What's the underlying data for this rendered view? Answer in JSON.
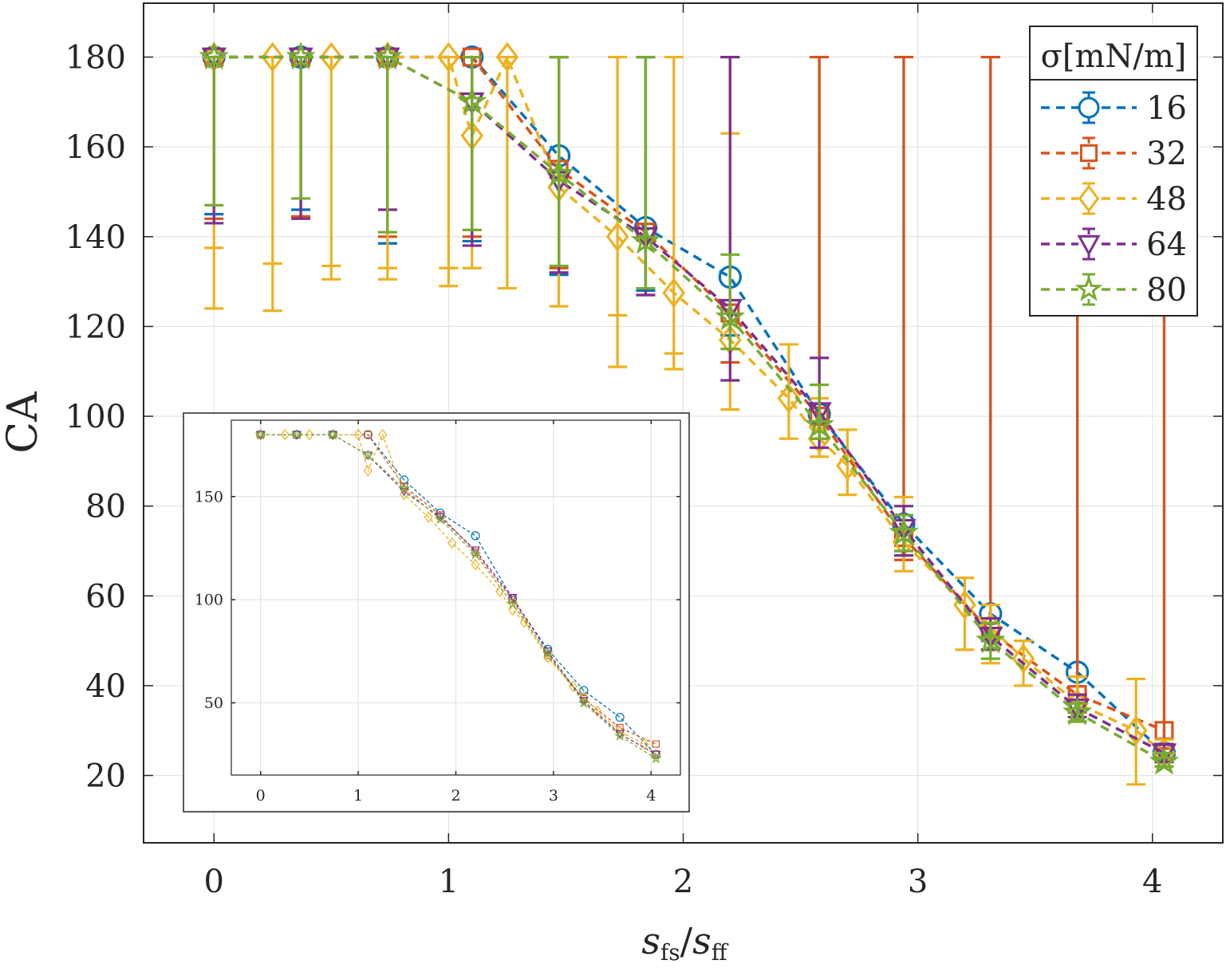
{
  "chart_data": {
    "type": "scatter",
    "xlabel": "s_fs/s_ff",
    "xlabel_parts": {
      "s1": "s",
      "sub1": "fs",
      "slash": "/",
      "s2": "s",
      "sub2": "ff"
    },
    "ylabel": "CA",
    "xlim": [
      -0.3,
      4.3
    ],
    "ylim": [
      5,
      192
    ],
    "xticks": [
      "0",
      "1",
      "2",
      "3",
      "4"
    ],
    "yticks": [
      "20",
      "40",
      "60",
      "80",
      "100",
      "120",
      "140",
      "160",
      "180"
    ],
    "grid": true,
    "legend": {
      "title": "σ[mN/m]",
      "position": "top-right",
      "entries": [
        "16",
        "32",
        "48",
        "64",
        "80"
      ]
    },
    "series": [
      {
        "name": "16",
        "marker": "circle",
        "color": "#0072BD",
        "x": [
          0,
          0.37,
          0.74,
          1.1,
          1.47,
          1.84,
          2.2,
          2.58,
          2.94,
          3.31,
          3.68,
          4.05
        ],
        "y": [
          180,
          180,
          180,
          180,
          158,
          142,
          131,
          100.5,
          76,
          56,
          43,
          25
        ],
        "err_low": [
          145,
          146,
          138.5,
          139,
          131.5,
          128,
          118,
          95,
          70,
          50,
          38,
          23
        ]
      },
      {
        "name": "32",
        "marker": "square",
        "color": "#D95319",
        "x": [
          0,
          0.37,
          0.74,
          1.1,
          1.47,
          1.84,
          2.2,
          2.58,
          2.94,
          3.31,
          3.68,
          4.05
        ],
        "y": [
          180,
          180,
          180,
          180,
          155,
          141,
          123,
          100,
          73,
          52,
          38,
          30
        ],
        "err_low": [
          144,
          144.5,
          140,
          140,
          133,
          127,
          112,
          95,
          68,
          48,
          34,
          26
        ]
      },
      {
        "name": "48",
        "marker": "diamond",
        "color": "#EDB120",
        "x": [
          0,
          0.25,
          0.5,
          0.74,
          1.0,
          1.1,
          1.25,
          1.47,
          1.72,
          1.96,
          2.2,
          2.45,
          2.58,
          2.7,
          2.94,
          3.2,
          3.31,
          3.45,
          3.68,
          3.93,
          4.05
        ],
        "y": [
          180,
          180,
          180,
          180,
          180,
          162.5,
          180,
          151,
          140,
          127.5,
          117,
          104,
          95,
          89,
          72,
          58,
          53,
          46,
          36,
          30,
          25
        ],
        "err_low": [
          124,
          123.5,
          130.5,
          130.5,
          129,
          133,
          128.5,
          124.5,
          111,
          110.5,
          101.5,
          95,
          91,
          82.5,
          65.5,
          48,
          45,
          40,
          32,
          18,
          22
        ],
        "err_high": [
          180,
          180,
          180,
          180,
          180,
          180,
          180,
          180,
          180,
          180,
          163,
          116,
          104,
          97,
          82,
          64,
          58,
          50,
          42,
          41.5,
          28
        ],
        "extra_caps": [
          [
            0,
            137.5
          ],
          [
            0.25,
            134
          ],
          [
            0.5,
            133.5
          ],
          [
            0.74,
            133
          ],
          [
            1.0,
            133
          ],
          [
            1.47,
            132
          ],
          [
            1.72,
            122.5
          ],
          [
            1.96,
            114
          ]
        ]
      },
      {
        "name": "64",
        "marker": "triangle-down",
        "color": "#7E2F8E",
        "x": [
          0,
          0.37,
          0.74,
          1.1,
          1.47,
          1.84,
          2.2,
          2.58,
          2.94,
          3.31,
          3.68,
          4.05
        ],
        "y": [
          180,
          180,
          180,
          170,
          152.5,
          140,
          124,
          101,
          75,
          51,
          35,
          25
        ],
        "err_low": [
          143,
          144,
          146,
          138,
          132,
          127,
          108,
          93,
          69,
          48,
          33,
          23
        ],
        "err_high": [
          180,
          180,
          180,
          180,
          180,
          180,
          180,
          113,
          80,
          55,
          38,
          27
        ]
      },
      {
        "name": "80",
        "marker": "star",
        "color": "#77AC30",
        "x": [
          0,
          0.37,
          0.74,
          1.1,
          1.47,
          1.84,
          2.2,
          2.58,
          2.94,
          3.31,
          3.68,
          4.05
        ],
        "y": [
          180,
          180,
          180,
          170,
          154,
          139,
          122,
          98,
          74,
          50,
          34,
          23
        ],
        "err_low": [
          147,
          148.5,
          141,
          141.5,
          133.5,
          128.5,
          115,
          95,
          70,
          46,
          32,
          22
        ],
        "err_high": [
          180,
          180,
          180,
          180,
          180,
          180,
          136,
          107,
          78,
          54,
          36,
          25
        ]
      }
    ],
    "inset": {
      "xticks": [
        "0",
        "1",
        "2",
        "3",
        "4"
      ],
      "yticks": [
        "50",
        "100",
        "150"
      ],
      "xlim": [
        -0.3,
        4.3
      ],
      "ylim": [
        15,
        187
      ],
      "series_refs": [
        "16",
        "32",
        "48",
        "64",
        "80"
      ]
    }
  }
}
